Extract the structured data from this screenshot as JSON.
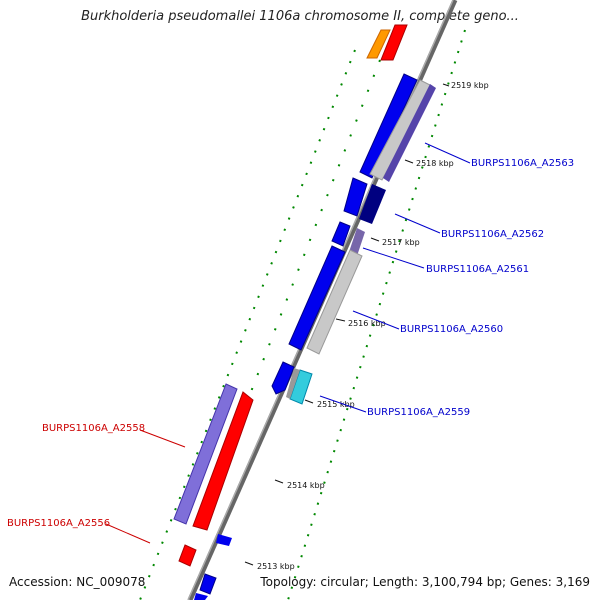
{
  "title": "Burkholderia pseudomallei 1106a chromosome II, complete geno...",
  "footer": {
    "accession": "Accession: NC_009078",
    "summary": "Topology: circular; Length: 3,100,794 bp; Genes: 3,169"
  },
  "ticks": [
    "2519 kbp",
    "2518 kbp",
    "2517 kbp",
    "2516 kbp",
    "2515 kbp",
    "2514 kbp",
    "2513 kbp"
  ],
  "gene_labels": [
    {
      "name": "BURPS1106A_A2563",
      "strand": "forward",
      "color": "#0000cc"
    },
    {
      "name": "BURPS1106A_A2562",
      "strand": "forward",
      "color": "#0000cc"
    },
    {
      "name": "BURPS1106A_A2561",
      "strand": "forward",
      "color": "#0000cc"
    },
    {
      "name": "BURPS1106A_A2560",
      "strand": "forward",
      "color": "#0000cc"
    },
    {
      "name": "BURPS1106A_A2559",
      "strand": "forward",
      "color": "#0000cc"
    },
    {
      "name": "BURPS1106A_A2558",
      "strand": "reverse",
      "color": "#cc0000"
    },
    {
      "name": "BURPS1106A_A2556",
      "strand": "reverse",
      "color": "#cc0000"
    }
  ],
  "colors": {
    "forward_cds": "#0000ee",
    "reverse_cds": "#ff0000",
    "forward_track": "#c0c0c0",
    "reverse_track": "#7f6fd9",
    "other_feature": "#ff9900",
    "tick_mark": "#006600"
  }
}
